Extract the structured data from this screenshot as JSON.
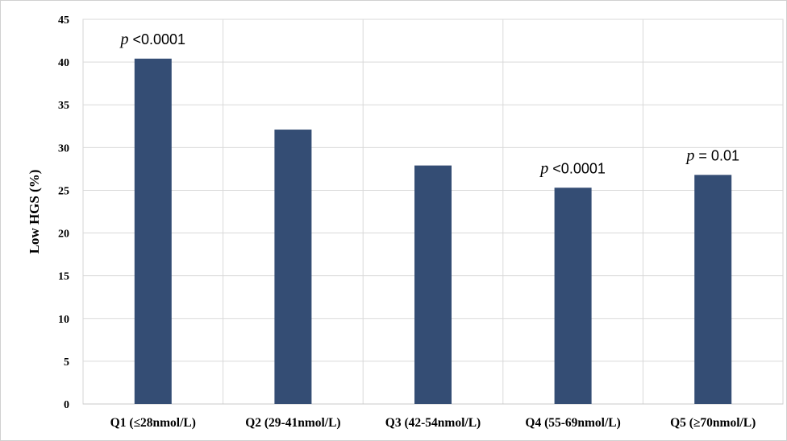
{
  "chart_data": {
    "type": "bar",
    "ylabel": "Low HGS (%)",
    "xlabel": "",
    "ylim": [
      0,
      45
    ],
    "yticks": [
      "0",
      "5",
      "10",
      "15",
      "20",
      "25",
      "30",
      "35",
      "40",
      "45"
    ],
    "categories": [
      "Q1 (≤28nmol/L)",
      "Q2 (29-41nmol/L)",
      "Q3 (42-54nmol/L)",
      "Q4 (55-69nmol/L)",
      "Q5 (≥70nmol/L)"
    ],
    "values": [
      40.4,
      32.1,
      27.9,
      25.3,
      26.8
    ],
    "annotations": [
      {
        "category_index": 0,
        "p": "p",
        "rest": " <0.0001"
      },
      {
        "category_index": 3,
        "p": "p",
        "rest": " <0.0001"
      },
      {
        "category_index": 4,
        "p": "p",
        "rest": " = 0.01"
      }
    ],
    "bar_color": "#344d74",
    "grid": true
  }
}
